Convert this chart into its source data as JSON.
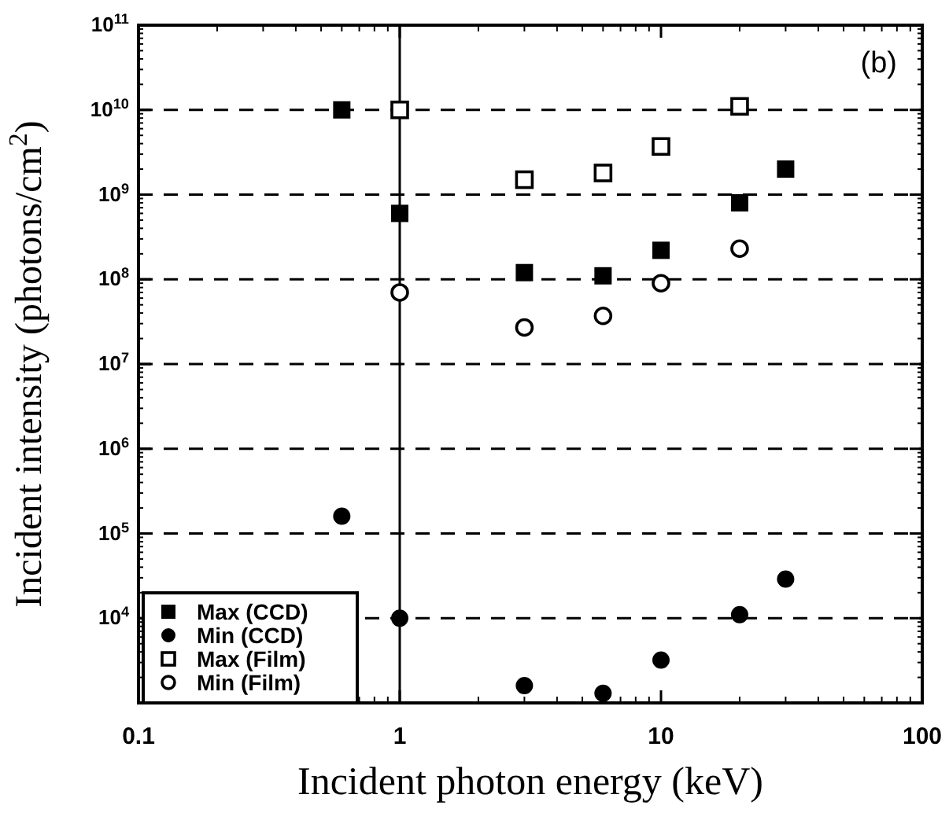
{
  "chart_data": {
    "type": "scatter",
    "xlabel": "Incident photon energy (keV)",
    "ylabel": "Incident intensity (photons/cm$^{2}$)",
    "annotations": [
      "(b)"
    ],
    "log": "xy",
    "xlim": [
      0.1,
      100
    ],
    "xticks": [
      0.1,
      1,
      10,
      100
    ],
    "ylim": [
      1000,
      100000000000
    ],
    "yticks": [
      {
        "value": 1000,
        "label": null
      },
      {
        "value": 10000,
        "label": "10$^{4}$"
      },
      {
        "value": 100000,
        "label": "10$^{5}$"
      },
      {
        "value": 1000000,
        "label": "10$^{6}$"
      },
      {
        "value": 10000000,
        "label": "10$^{7}$"
      },
      {
        "value": 100000000,
        "label": "10$^{8}$"
      },
      {
        "value": 1000000000,
        "label": "10$^{9}$"
      },
      {
        "value": 10000000000,
        "label": "10$^{10}$"
      },
      {
        "value": 100000000000,
        "label": "10$^{11}$"
      }
    ],
    "grid": "y",
    "legend": "bottom left",
    "ref_lines": [
      {
        "axis": "x",
        "value": 1
      }
    ],
    "series": [
      {
        "name": "Max (CCD)",
        "color": "#000000",
        "marker": "square",
        "x": [
          0.6,
          1,
          3,
          6,
          10,
          20,
          30
        ],
        "values": [
          10000000000,
          600000000,
          120000000,
          110000000,
          220000000,
          800000000,
          2000000000
        ]
      },
      {
        "name": "Min (CCD)",
        "color": "#000000",
        "marker": "circle",
        "x": [
          0.6,
          1,
          3,
          6,
          10,
          20,
          30
        ],
        "values": [
          160000,
          10000,
          1600,
          1300,
          3200,
          11000,
          29000
        ]
      },
      {
        "name": "Max (Film)",
        "color": "#000000",
        "marker": "square",
        "x": [
          1,
          3,
          6,
          10,
          20
        ],
        "values": [
          10000000000,
          1500000000,
          1800000000,
          3700000000,
          11000000000
        ]
      },
      {
        "name": "Min (Film)",
        "color": "#000000",
        "marker": "circle",
        "x": [
          1,
          3,
          6,
          10,
          20
        ],
        "values": [
          70000000,
          27000000,
          37000000,
          90000000,
          230000000
        ]
      }
    ]
  }
}
